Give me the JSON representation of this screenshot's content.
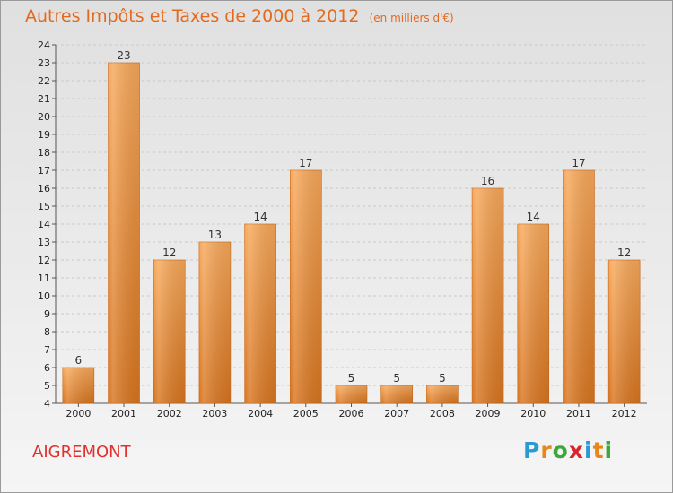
{
  "title": "Autres Impôts et Taxes de 2000 à 2012",
  "subtitle": "(en milliers d'€)",
  "place_name": "AIGREMONT",
  "logo": {
    "text": "Proxiti",
    "letter_colors": [
      "#2a9ad6",
      "#e8861a",
      "#3aa83a",
      "#d7252b",
      "#2a9ad6",
      "#e8861a",
      "#3aa83a"
    ]
  },
  "colors": {
    "bar_light": "#f7a85a",
    "bar_dark": "#d8751f",
    "accent": "#e26a1f"
  },
  "chart_data": {
    "type": "bar",
    "categories": [
      "2000",
      "2001",
      "2002",
      "2003",
      "2004",
      "2005",
      "2006",
      "2007",
      "2008",
      "2009",
      "2010",
      "2011",
      "2012"
    ],
    "values": [
      6,
      23,
      12,
      13,
      14,
      17,
      5,
      5,
      5,
      16,
      14,
      17,
      12
    ],
    "ylim": [
      4,
      24
    ],
    "yticks": [
      4,
      5,
      6,
      7,
      8,
      9,
      10,
      11,
      12,
      13,
      14,
      15,
      16,
      17,
      18,
      19,
      20,
      21,
      22,
      23,
      24
    ],
    "grid": true
  }
}
